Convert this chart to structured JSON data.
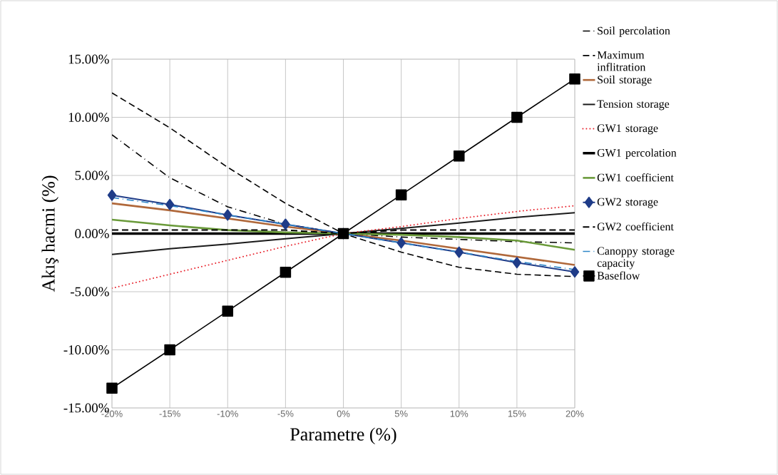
{
  "chart_data": {
    "type": "line",
    "xlabel": "Parametre (%)",
    "ylabel": "Akış hacmi (%)",
    "categories": [
      "-20%",
      "-15%",
      "-10%",
      "-5%",
      "0%",
      "5%",
      "10%",
      "15%",
      "20%"
    ],
    "ylim": [
      -15,
      15
    ],
    "yticks": [
      {
        "value": -15,
        "label": "-15.00%"
      },
      {
        "value": -10,
        "label": "-10.00%"
      },
      {
        "value": -5,
        "label": "-5.00%"
      },
      {
        "value": 0,
        "label": "0.00%"
      },
      {
        "value": 5,
        "label": "5.00%"
      },
      {
        "value": 10,
        "label": "10.00%"
      },
      {
        "value": 15,
        "label": "15.00%"
      }
    ],
    "grid": true,
    "legend": "right",
    "series": [
      {
        "name": "Soil percolation",
        "color": "#000000",
        "line_style": "dashdot",
        "values": [
          8.5,
          4.8,
          2.3,
          0.8,
          0,
          -0.3,
          -0.5,
          -0.7,
          -0.8
        ]
      },
      {
        "name": "Maximum inflitration",
        "color": "#000000",
        "line_style": "dashed",
        "values": [
          12.1,
          9.1,
          5.7,
          2.6,
          0,
          -1.6,
          -2.9,
          -3.5,
          -3.7
        ]
      },
      {
        "name": "Soil storage",
        "color": "#b0683a",
        "line_style": "solid",
        "values": [
          2.6,
          2.0,
          1.3,
          0.6,
          0,
          -0.6,
          -1.3,
          -2.0,
          -2.7
        ]
      },
      {
        "name": "Tension storage",
        "color": "#1a1a1a",
        "line_style": "solid",
        "values": [
          -1.8,
          -1.3,
          -0.9,
          -0.45,
          0,
          0.45,
          0.9,
          1.4,
          1.8
        ]
      },
      {
        "name": "GW1 storage",
        "color": "#e8202a",
        "line_style": "dotted",
        "values": [
          -4.7,
          -3.5,
          -2.3,
          -1.1,
          0,
          0.6,
          1.3,
          1.9,
          2.4
        ]
      },
      {
        "name": "GW1 percolation",
        "color": "#000000",
        "line_style": "solid",
        "values": [
          0,
          0,
          0,
          0,
          0,
          0,
          0,
          0,
          0
        ]
      },
      {
        "name": "GW1 coefficient",
        "color": "#6a9a3a",
        "line_style": "solid",
        "values": [
          1.2,
          0.7,
          0.3,
          0.1,
          0,
          -0.1,
          -0.3,
          -0.6,
          -1.4
        ]
      },
      {
        "name": "GW2 storage",
        "color": "#1f3c88",
        "line_style": "solid",
        "marker": "diamond",
        "values": [
          3.3,
          2.5,
          1.6,
          0.8,
          0,
          -0.8,
          -1.6,
          -2.5,
          -3.3
        ]
      },
      {
        "name": "GW2 coefficient",
        "color": "#000000",
        "line_style": "dashed",
        "values": [
          0.3,
          0.3,
          0.3,
          0.3,
          0,
          0.3,
          0.3,
          0.3,
          0.3
        ]
      },
      {
        "name": "Canoppy storage capacity",
        "color": "#2e86c8",
        "line_style": "dashdot",
        "values": [
          3.1,
          2.4,
          1.6,
          0.8,
          0,
          -0.8,
          -1.6,
          -2.4,
          -3.1
        ]
      },
      {
        "name": "Baseflow",
        "color": "#000000",
        "line_style": "solid",
        "marker": "square",
        "values": [
          -13.3,
          -10,
          -6.67,
          -3.33,
          0,
          3.33,
          6.67,
          10,
          13.3
        ]
      }
    ]
  }
}
